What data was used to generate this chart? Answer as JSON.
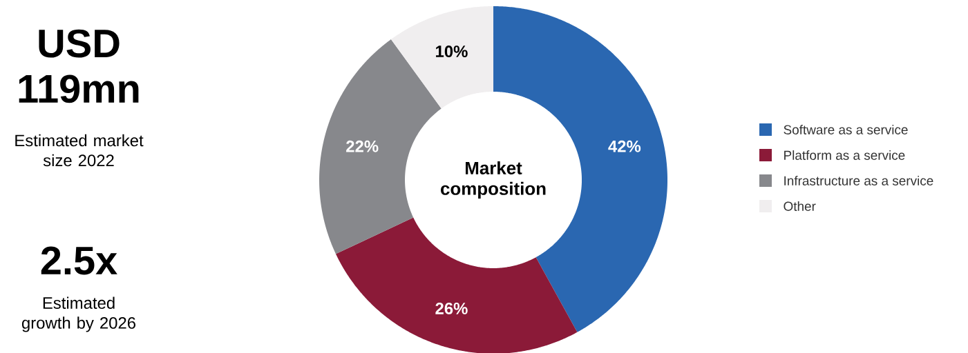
{
  "chart_data": {
    "type": "donut",
    "title": "Market composition",
    "categories": [
      "Software as a service",
      "Platform as a service",
      "Infrastructure as a service",
      "Other"
    ],
    "values": [
      42,
      26,
      22,
      10
    ],
    "colors": [
      "#2a67b1",
      "#8b1a38",
      "#87888c",
      "#f0eeef"
    ],
    "value_labels": [
      "42%",
      "26%",
      "22%",
      "10%"
    ],
    "legend": "right",
    "annotations": [
      "USD 119mn",
      "Estimated market size 2022",
      "2.5x",
      "Estimated growth by 2026"
    ]
  }
}
